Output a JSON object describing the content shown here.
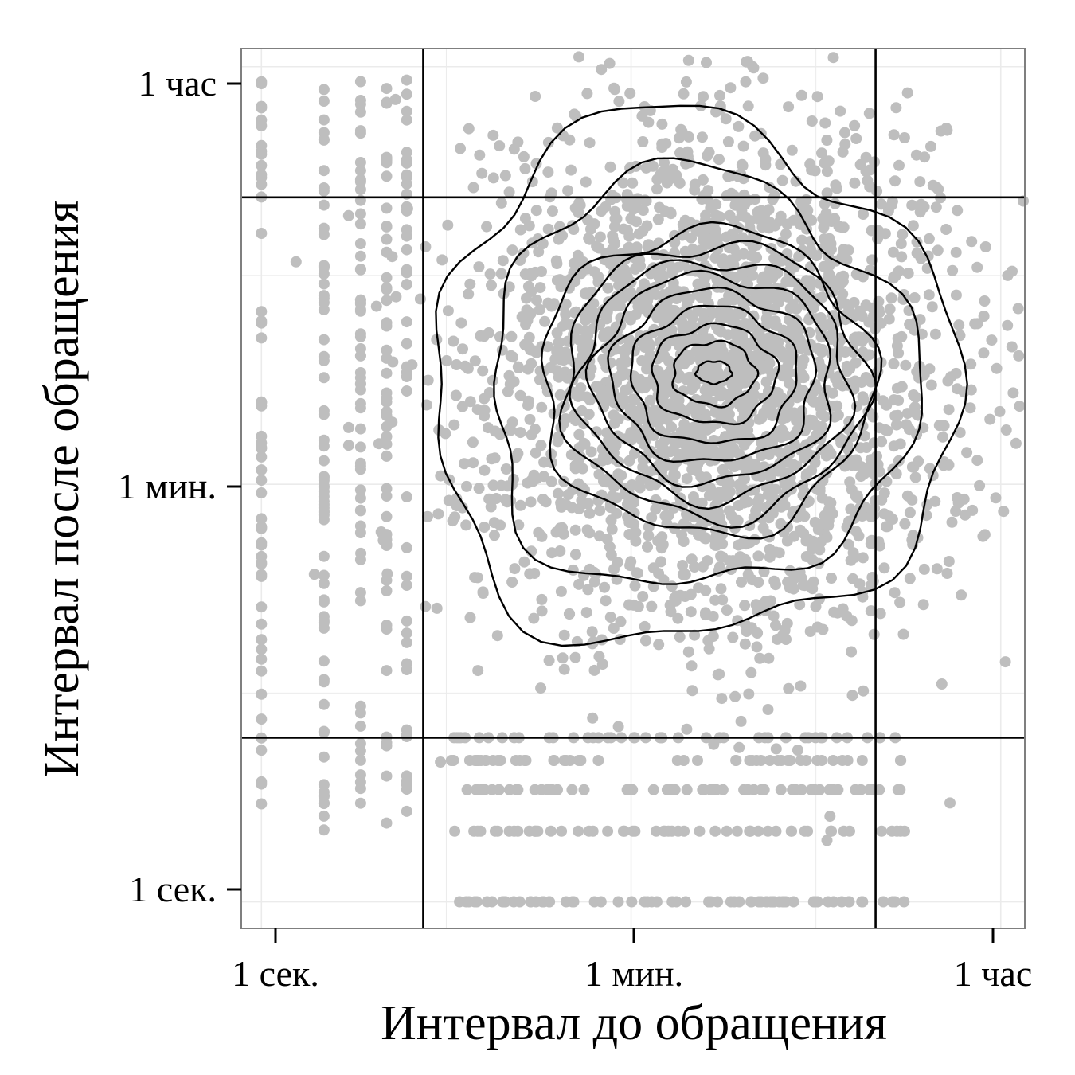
{
  "chart_data": {
    "type": "scatter",
    "title": "",
    "xlabel": "Интервал до обращения",
    "ylabel": "Интервал после обращения",
    "x_scale": "log",
    "y_scale": "log",
    "x_unit": "seconds",
    "y_unit": "seconds",
    "xlim": [
      0.8,
      4700
    ],
    "ylim": [
      0.77,
      4300
    ],
    "x_ticks": [
      {
        "value": 1,
        "label": "1 сек."
      },
      {
        "value": 60,
        "label": "1 мин."
      },
      {
        "value": 3600,
        "label": "1 час"
      }
    ],
    "y_ticks": [
      {
        "value": 1,
        "label": "1 сек."
      },
      {
        "value": 60,
        "label": "1 мин."
      },
      {
        "value": 3600,
        "label": "1 час"
      }
    ],
    "reference_lines": {
      "vertical": [
        6,
        900
      ],
      "horizontal": [
        5,
        1000
      ]
    },
    "density_peak": {
      "x": 150,
      "y": 180
    },
    "point_color": "#bebebe",
    "line_color": "#000000",
    "grid": true,
    "legend": "none"
  },
  "colors": {
    "background": "#ffffff",
    "grid": "#ebebeb",
    "panel_border": "#7f7f7f",
    "points": "#bebebe",
    "contours": "#000000"
  }
}
